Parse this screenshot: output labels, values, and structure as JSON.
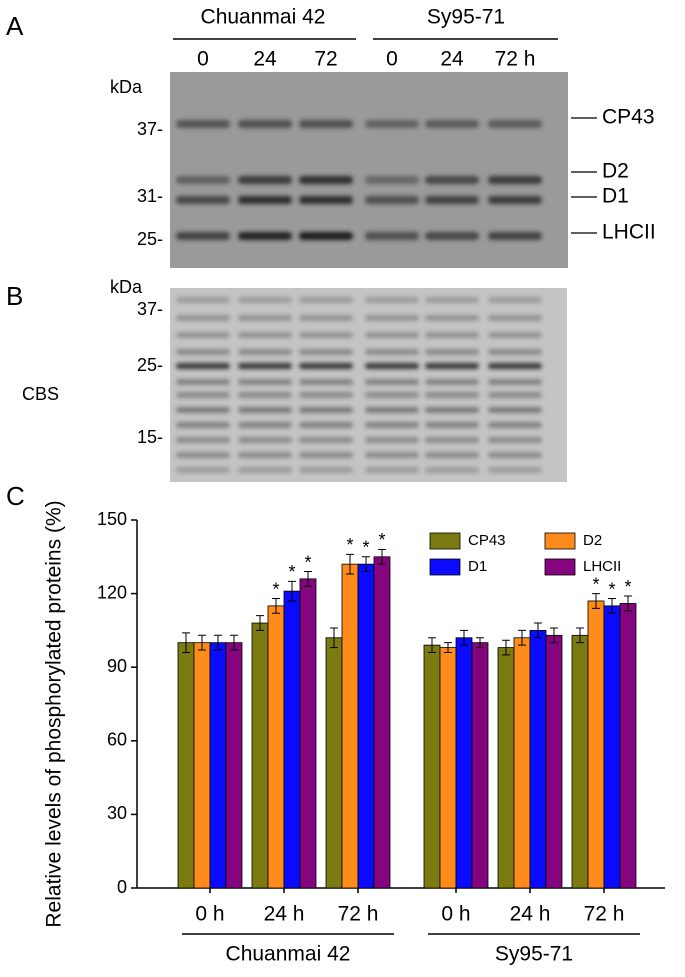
{
  "panel_a": {
    "letter": "A",
    "groups": [
      "Chuanmai 42",
      "Sy95-71"
    ],
    "lanes": [
      "0",
      "24",
      "72",
      "0",
      "24",
      "72 h"
    ],
    "unit": "kDa",
    "markers": [
      "37-",
      "31-",
      "25-"
    ],
    "bands": [
      "CP43",
      "D2",
      "D1",
      "LHCII"
    ]
  },
  "panel_b": {
    "letter": "B",
    "unit": "kDa",
    "markers": [
      "37-",
      "25-",
      "15-"
    ],
    "label": "CBS"
  },
  "chart_data": {
    "type": "bar",
    "letter": "C",
    "ylabel": "Relative levels of phosphorylated proteins (%)",
    "categories": [
      "0 h",
      "24 h",
      "72 h",
      "0 h",
      "24 h",
      "72 h"
    ],
    "groups": [
      "Chuanmai 42",
      "Sy95-71"
    ],
    "ylim": [
      0,
      150
    ],
    "yticks": [
      0,
      30,
      60,
      90,
      120,
      150
    ],
    "legend": "top-right",
    "series": [
      {
        "name": "CP43",
        "color": "#7b7b12",
        "values": [
          100,
          108,
          102,
          99,
          98,
          103
        ],
        "errors": [
          4,
          3,
          4,
          3,
          3,
          3
        ],
        "annotations": [
          null,
          null,
          null,
          null,
          null,
          null
        ]
      },
      {
        "name": "D2",
        "color": "#ff8c1a",
        "values": [
          100,
          115,
          132,
          98,
          102,
          117
        ],
        "errors": [
          3,
          3,
          4,
          2,
          3,
          3
        ],
        "annotations": [
          null,
          "*",
          "*",
          null,
          null,
          "*"
        ]
      },
      {
        "name": "D1",
        "color": "#0a0aff",
        "values": [
          100,
          121,
          132,
          102,
          105,
          115
        ],
        "errors": [
          3,
          4,
          3,
          3,
          3,
          3
        ],
        "annotations": [
          null,
          "*",
          "*",
          null,
          null,
          "*"
        ]
      },
      {
        "name": "LHCII",
        "color": "#85057f",
        "values": [
          100,
          126,
          135,
          100,
          103,
          116
        ],
        "errors": [
          3,
          3,
          3,
          2,
          3,
          3
        ],
        "annotations": [
          null,
          "*",
          "*",
          null,
          null,
          "*"
        ]
      }
    ]
  }
}
